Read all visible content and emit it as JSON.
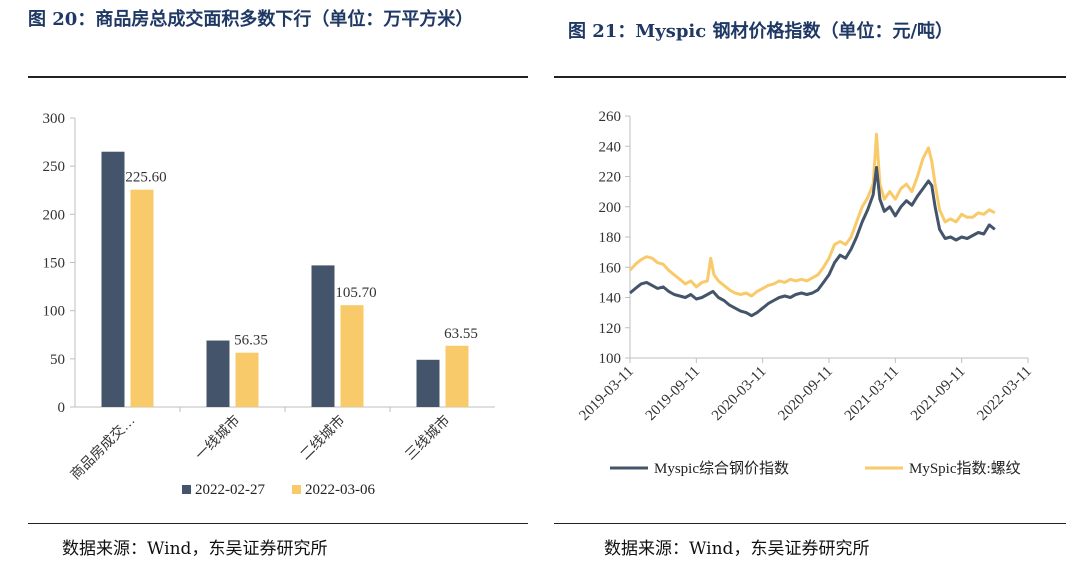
{
  "left": {
    "title": "图 20：商品房总成交面积多数下行（单位：万平方米）",
    "source": "数据来源：Wind，东吴证券研究所"
  },
  "right": {
    "title": "图 21：Myspic 钢材价格指数（单位：元/吨）",
    "source": "数据来源：Wind，东吴证券研究所"
  },
  "chart_data": [
    {
      "type": "bar",
      "title": "商品房总成交面积多数下行（单位：万平方米）",
      "categories": [
        "商品房成交…",
        "一线城市",
        "二线城市",
        "三线城市"
      ],
      "series": [
        {
          "name": "2022-02-27",
          "color": "#44546a",
          "values": [
            265,
            69,
            147,
            49
          ]
        },
        {
          "name": "2022-03-06",
          "color": "#f8ca6a",
          "values": [
            225.6,
            56.35,
            105.7,
            63.55
          ]
        }
      ],
      "data_labels": [
        "225.60",
        "56.35",
        "105.70",
        "63.55"
      ],
      "ylim": [
        0,
        300
      ],
      "yticks": [
        "0",
        "50",
        "100",
        "150",
        "200",
        "250",
        "300"
      ],
      "legend": "bottom"
    },
    {
      "type": "line",
      "title": "Myspic 钢材价格指数（单位：元/吨）",
      "ylim": [
        100,
        260
      ],
      "yticks": [
        "100",
        "120",
        "140",
        "160",
        "180",
        "200",
        "220",
        "240",
        "260"
      ],
      "xticks": [
        "2019-03-11",
        "2019-09-11",
        "2020-03-11",
        "2020-09-11",
        "2021-03-11",
        "2021-09-11",
        "2022-03-11"
      ],
      "x_months_span": 36,
      "series": [
        {
          "name": "Myspic综合钢价指数",
          "color": "#44546a",
          "points": [
            [
              0,
              143
            ],
            [
              0.5,
              146
            ],
            [
              1,
              149
            ],
            [
              1.5,
              150
            ],
            [
              2,
              148
            ],
            [
              2.5,
              146
            ],
            [
              3,
              147
            ],
            [
              3.5,
              144
            ],
            [
              4,
              142
            ],
            [
              4.5,
              141
            ],
            [
              5,
              140
            ],
            [
              5.5,
              142
            ],
            [
              6,
              139
            ],
            [
              6.5,
              140
            ],
            [
              7,
              142
            ],
            [
              7.5,
              144
            ],
            [
              8,
              140
            ],
            [
              8.5,
              138
            ],
            [
              9,
              135
            ],
            [
              9.5,
              133
            ],
            [
              10,
              131
            ],
            [
              10.5,
              130
            ],
            [
              11,
              128
            ],
            [
              11.5,
              130
            ],
            [
              12,
              133
            ],
            [
              12.5,
              136
            ],
            [
              13,
              138
            ],
            [
              13.5,
              140
            ],
            [
              14,
              141
            ],
            [
              14.5,
              140
            ],
            [
              15,
              142
            ],
            [
              15.5,
              143
            ],
            [
              16,
              142
            ],
            [
              16.5,
              143
            ],
            [
              17,
              145
            ],
            [
              17.5,
              150
            ],
            [
              18,
              155
            ],
            [
              18.5,
              163
            ],
            [
              19,
              168
            ],
            [
              19.5,
              166
            ],
            [
              20,
              172
            ],
            [
              20.5,
              180
            ],
            [
              21,
              190
            ],
            [
              21.5,
              198
            ],
            [
              22,
              208
            ],
            [
              22.3,
              226
            ],
            [
              22.6,
              205
            ],
            [
              23,
              197
            ],
            [
              23.5,
              200
            ],
            [
              24,
              194
            ],
            [
              24.5,
              200
            ],
            [
              25,
              204
            ],
            [
              25.5,
              201
            ],
            [
              26,
              207
            ],
            [
              26.5,
              212
            ],
            [
              27,
              217
            ],
            [
              27.3,
              214
            ],
            [
              27.6,
              200
            ],
            [
              28,
              185
            ],
            [
              28.5,
              179
            ],
            [
              29,
              180
            ],
            [
              29.5,
              178
            ],
            [
              30,
              180
            ],
            [
              30.5,
              179
            ],
            [
              31,
              181
            ],
            [
              31.5,
              183
            ],
            [
              32,
              182
            ],
            [
              32.5,
              188
            ],
            [
              33,
              185
            ]
          ]
        },
        {
          "name": "MySpic指数:螺纹",
          "color": "#f8ca6a",
          "points": [
            [
              0,
              158
            ],
            [
              0.5,
              162
            ],
            [
              1,
              165
            ],
            [
              1.5,
              167
            ],
            [
              2,
              166
            ],
            [
              2.5,
              163
            ],
            [
              3,
              162
            ],
            [
              3.5,
              158
            ],
            [
              4,
              155
            ],
            [
              4.5,
              152
            ],
            [
              5,
              149
            ],
            [
              5.5,
              151
            ],
            [
              6,
              147
            ],
            [
              6.5,
              150
            ],
            [
              7,
              151
            ],
            [
              7.3,
              166
            ],
            [
              7.6,
              155
            ],
            [
              8,
              151
            ],
            [
              8.5,
              148
            ],
            [
              9,
              145
            ],
            [
              9.5,
              143
            ],
            [
              10,
              142
            ],
            [
              10.5,
              143
            ],
            [
              11,
              141
            ],
            [
              11.5,
              144
            ],
            [
              12,
              146
            ],
            [
              12.5,
              148
            ],
            [
              13,
              149
            ],
            [
              13.5,
              151
            ],
            [
              14,
              150
            ],
            [
              14.5,
              152
            ],
            [
              15,
              151
            ],
            [
              15.5,
              152
            ],
            [
              16,
              151
            ],
            [
              16.5,
              153
            ],
            [
              17,
              155
            ],
            [
              17.5,
              160
            ],
            [
              18,
              166
            ],
            [
              18.5,
              175
            ],
            [
              19,
              177
            ],
            [
              19.5,
              175
            ],
            [
              20,
              180
            ],
            [
              20.5,
              190
            ],
            [
              21,
              200
            ],
            [
              21.5,
              206
            ],
            [
              22,
              215
            ],
            [
              22.3,
              248
            ],
            [
              22.6,
              215
            ],
            [
              23,
              205
            ],
            [
              23.5,
              210
            ],
            [
              24,
              205
            ],
            [
              24.5,
              212
            ],
            [
              25,
              215
            ],
            [
              25.5,
              210
            ],
            [
              26,
              220
            ],
            [
              26.5,
              232
            ],
            [
              27,
              239
            ],
            [
              27.3,
              230
            ],
            [
              27.6,
              215
            ],
            [
              28,
              198
            ],
            [
              28.5,
              190
            ],
            [
              29,
              192
            ],
            [
              29.5,
              190
            ],
            [
              30,
              195
            ],
            [
              30.5,
              193
            ],
            [
              31,
              193
            ],
            [
              31.5,
              196
            ],
            [
              32,
              195
            ],
            [
              32.5,
              198
            ],
            [
              33,
              196
            ]
          ]
        }
      ],
      "legend": "bottom"
    }
  ]
}
